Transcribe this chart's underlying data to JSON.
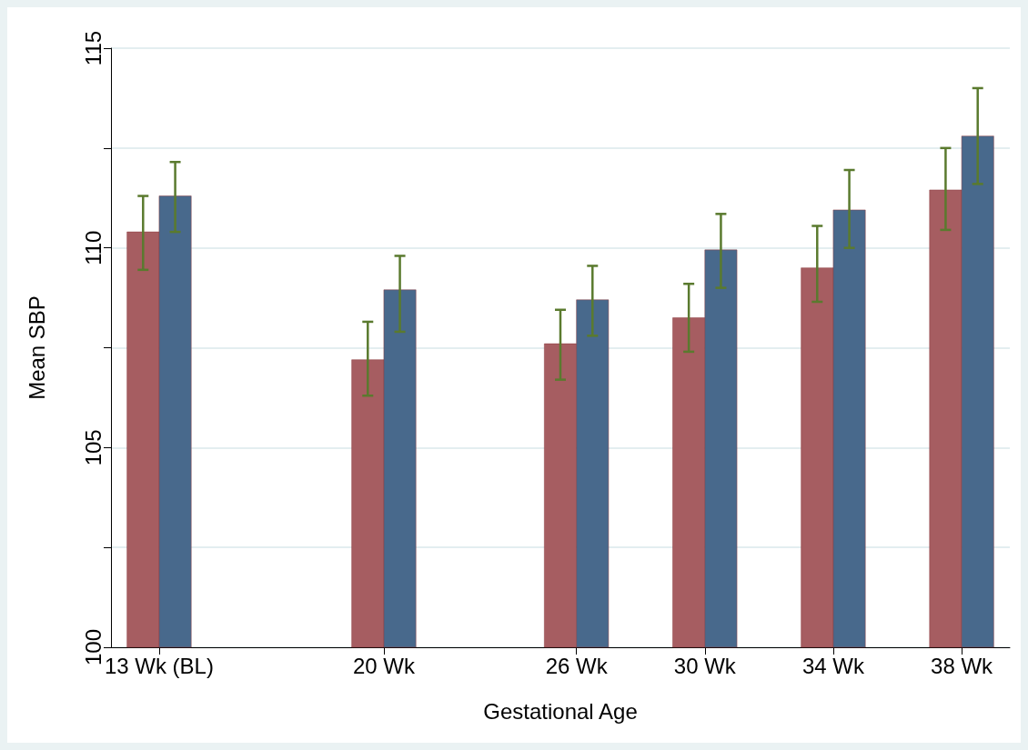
{
  "chart_data": {
    "type": "bar",
    "xlabel": "Gestational Age",
    "ylabel": "Mean SBP",
    "x": [
      13,
      20,
      26,
      30,
      34,
      38
    ],
    "xlim": [
      11.5,
      39.5
    ],
    "xticks": [
      {
        "value": 13,
        "label": "13 Wk (BL)"
      },
      {
        "value": 20,
        "label": "20 Wk"
      },
      {
        "value": 26,
        "label": "26 Wk"
      },
      {
        "value": 30,
        "label": "30 Wk"
      },
      {
        "value": 34,
        "label": "34 Wk"
      },
      {
        "value": 38,
        "label": "38 Wk"
      }
    ],
    "ylim": [
      100,
      115
    ],
    "yticks": [
      100,
      {
        "value": 102.5,
        "label": null
      },
      105,
      {
        "value": 107.5,
        "label": null
      },
      110,
      {
        "value": 112.5,
        "label": null
      },
      115
    ],
    "grid": "y",
    "series": [
      {
        "color": "#a65d61",
        "values": [
          110.4,
          107.2,
          107.6,
          108.25,
          109.5,
          111.45
        ],
        "errors": [
          [
            109.45,
            111.3
          ],
          [
            106.3,
            108.15
          ],
          [
            106.7,
            108.45
          ],
          [
            107.4,
            109.1
          ],
          [
            108.65,
            110.55
          ],
          [
            110.45,
            112.5
          ]
        ]
      },
      {
        "color": "#48698c",
        "values": [
          111.3,
          108.95,
          108.7,
          109.95,
          110.95,
          112.8
        ],
        "errors": [
          [
            110.4,
            112.15
          ],
          [
            107.9,
            109.8
          ],
          [
            107.8,
            109.55
          ],
          [
            109.0,
            110.85
          ],
          [
            110.0,
            111.95
          ],
          [
            111.6,
            114.0
          ]
        ]
      }
    ]
  }
}
